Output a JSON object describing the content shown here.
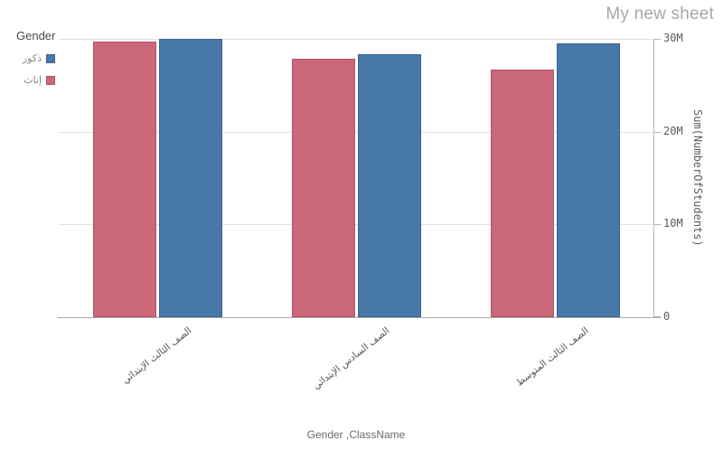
{
  "header": {
    "title": "My new sheet"
  },
  "legend": {
    "title": "Gender",
    "items": [
      {
        "label": "ذكور",
        "color": "#4878a8",
        "border": "#3d648c"
      },
      {
        "label": "إناث",
        "color": "#ca6778",
        "border": "#ad5666"
      }
    ]
  },
  "axes": {
    "x_title": "Gender ,ClassName",
    "y_title": "Sum(NumberOfStudents)"
  },
  "chart_data": {
    "type": "bar",
    "categories": [
      "الصف الثالث الإبتدائي",
      "الصف السادس الإبتدائي",
      "الصف الثالث المتوسط"
    ],
    "series": [
      {
        "name": "ذكور",
        "color": "#4878a8",
        "border": "#3d648c",
        "values": [
          30.0,
          28.3,
          29.5
        ]
      },
      {
        "name": "إناث",
        "color": "#ca6778",
        "border": "#ad5666",
        "values": [
          29.7,
          27.9,
          26.7
        ]
      }
    ],
    "unit": "millions",
    "title": "",
    "xlabel": "Gender ,ClassName",
    "ylabel": "Sum(NumberOfStudents)",
    "ylim": [
      0,
      30
    ],
    "yticks": [
      {
        "value": 0,
        "label": "0"
      },
      {
        "value": 10,
        "label": "10M"
      },
      {
        "value": 20,
        "label": "20M"
      },
      {
        "value": 30,
        "label": "30M"
      }
    ],
    "grid": true,
    "legend_position": "top-left",
    "rtl_series_order": true
  }
}
